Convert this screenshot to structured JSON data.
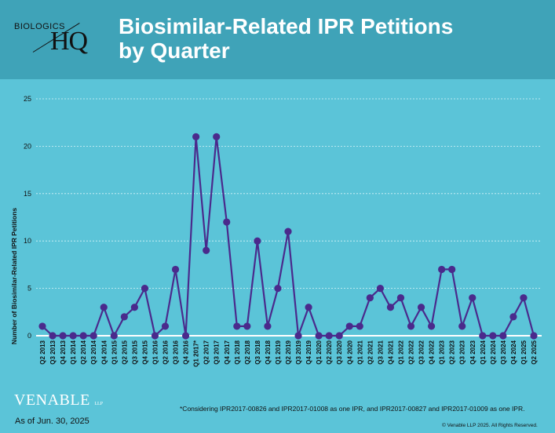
{
  "header": {
    "logo_top": "BIOLOGICS",
    "logo_main": "HQ",
    "title_line1": "Biosimilar-Related IPR Petitions",
    "title_line2": "by Quarter"
  },
  "footer": {
    "brand": "VENABLE",
    "brand_suffix": "LLP",
    "as_of": "As of Jun. 30, 2025",
    "note": "*Considering IPR2017-00826 and IPR2017-01008 as one IPR, and IPR2017-00827 and IPR2017-01009 as one IPR.",
    "copyright": "© Venable LLP 2025. All Rights Reserved."
  },
  "chart_data": {
    "type": "line",
    "title": "Biosimilar-Related IPR Petitions by Quarter",
    "ylabel": "Number of Biosimilar-Related IPR Petitions",
    "xlabel": "",
    "ylim": [
      0,
      25
    ],
    "yticks": [
      0,
      5,
      10,
      15,
      20,
      25
    ],
    "grid": "horizontal-dashed",
    "colors": {
      "line": "#4a2a8c",
      "marker": "#4a2a8c",
      "grid": "#d8f3f8",
      "baseline": "#ffffff"
    },
    "categories": [
      "Q2 2013",
      "Q3 2013",
      "Q4 2013",
      "Q1 2014",
      "Q2 2014",
      "Q3 2014",
      "Q4 2014",
      "Q1 2015",
      "Q2 2015",
      "Q3 2015",
      "Q4 2015",
      "Q1 2016",
      "Q2 2016",
      "Q3 2016",
      "Q4 2016",
      "Q1 2017*",
      "Q2 2017",
      "Q3 2017",
      "Q4 2017",
      "Q1 2018",
      "Q2 2018",
      "Q3 2018",
      "Q4 2018",
      "Q1 2019",
      "Q2 2019",
      "Q3 2019",
      "Q4 2019",
      "Q1 2020",
      "Q2 2020",
      "Q3 2020",
      "Q4 2020",
      "Q1 2021",
      "Q2 2021",
      "Q3 2021",
      "Q4 2021",
      "Q1 2022",
      "Q2 2022",
      "Q3 2022",
      "Q4 2022",
      "Q1 2023",
      "Q2 2023",
      "Q3 2023",
      "Q4 2023",
      "Q1 2024",
      "Q2 2024",
      "Q3 2024",
      "Q4 2024",
      "Q1 2025",
      "Q2 2025"
    ],
    "values": [
      1,
      0,
      0,
      0,
      0,
      0,
      3,
      0,
      2,
      3,
      5,
      0,
      1,
      7,
      0,
      21,
      9,
      21,
      12,
      1,
      1,
      10,
      1,
      5,
      11,
      0,
      3,
      0,
      0,
      0,
      1,
      1,
      4,
      5,
      3,
      4,
      1,
      3,
      1,
      7,
      7,
      1,
      4,
      0,
      0,
      0,
      2,
      4,
      0
    ]
  }
}
